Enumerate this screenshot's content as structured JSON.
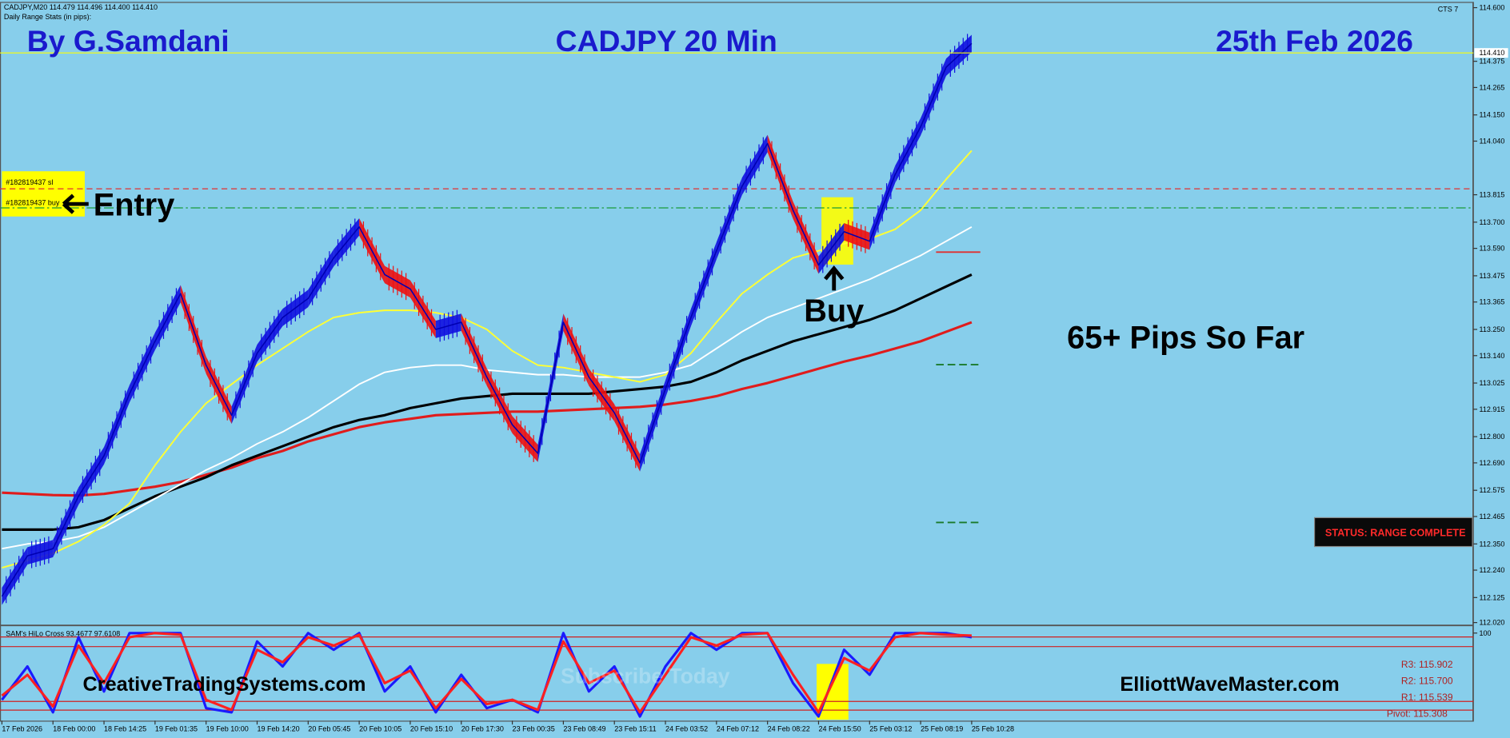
{
  "header": {
    "symbol": "CADJPY,M20 114.479 114.496 114.400 114.410",
    "stats": "Daily Range Stats (in pips):",
    "author": "By G.Samdani",
    "date": "25th Feb 2026",
    "indicator": "CTS 7"
  },
  "annotations": {
    "entry": "Entry",
    "buy": "Buy",
    "result": "65+ Pips So Far",
    "status": "STATUS: RANGE COMPLETE",
    "watermark": "Subscribe Today"
  },
  "footer": {
    "left": "CreativeTradingSystems.com",
    "right": "ElliottWaveMaster.com"
  },
  "pivots": [
    "R3: 115.902",
    "R2: 115.700",
    "R1: 115.539",
    "Pivot: 115.308"
  ],
  "chart_data": [
    {
      "type": "line",
      "title": "CADJPY 20 Min",
      "categories": [
        "17 Feb 2026",
        null,
        "18 Feb 00:00",
        null,
        "18 Feb 14:25",
        null,
        "19 Feb 01:35",
        null,
        "19 Feb 10:00",
        null,
        "19 Feb 14:20",
        null,
        "20 Feb 05:45",
        null,
        "20 Feb 10:05",
        null,
        "20 Feb 15:10",
        null,
        "20 Feb 17:30",
        null,
        "23 Feb 00:35",
        null,
        "23 Feb 08:49",
        null,
        "23 Feb 15:11",
        null,
        "24 Feb 03:52",
        null,
        "24 Feb 07:12",
        null,
        "24 Feb 08:22",
        null,
        "24 Feb 15:50",
        null,
        "25 Feb 03:12",
        null,
        "25 Feb 08:19",
        null,
        "25 Feb 10:28"
      ],
      "series": [
        {
          "color": "#e01c1c",
          "values": [
            112.565,
            112.56,
            112.555,
            112.553,
            112.56,
            112.575,
            112.59,
            112.61,
            112.64,
            112.67,
            112.71,
            112.74,
            112.78,
            112.81,
            112.84,
            112.86,
            112.875,
            112.89,
            112.895,
            112.9,
            112.905,
            112.905,
            112.91,
            112.915,
            112.92,
            112.925,
            112.935,
            112.95,
            112.97,
            113.0,
            113.025,
            113.055,
            113.085,
            113.115,
            113.14,
            113.17,
            113.2,
            113.24,
            113.28
          ]
        },
        {
          "color": "#000000",
          "values": [
            112.41,
            112.41,
            112.41,
            112.42,
            112.45,
            112.5,
            112.55,
            112.59,
            112.63,
            112.68,
            112.72,
            112.76,
            112.8,
            112.84,
            112.87,
            112.89,
            112.92,
            112.94,
            112.96,
            112.97,
            112.98,
            112.98,
            112.98,
            112.98,
            112.99,
            113.0,
            113.01,
            113.03,
            113.07,
            113.12,
            113.16,
            113.2,
            113.23,
            113.26,
            113.29,
            113.33,
            113.38,
            113.43,
            113.48
          ]
        },
        {
          "color": "#ffffff",
          "values": [
            112.33,
            112.35,
            112.36,
            112.38,
            112.42,
            112.48,
            112.54,
            112.6,
            112.66,
            112.71,
            112.77,
            112.82,
            112.88,
            112.95,
            113.02,
            113.07,
            113.09,
            113.1,
            113.1,
            113.08,
            113.07,
            113.06,
            113.06,
            113.05,
            113.05,
            113.05,
            113.07,
            113.1,
            113.17,
            113.24,
            113.3,
            113.34,
            113.38,
            113.42,
            113.46,
            113.51,
            113.56,
            113.62,
            113.68
          ]
        },
        {
          "color": "#ffff33",
          "values": [
            112.25,
            112.28,
            112.31,
            112.36,
            112.43,
            112.52,
            112.68,
            112.82,
            112.94,
            113.02,
            113.1,
            113.17,
            113.24,
            113.3,
            113.32,
            113.33,
            113.33,
            113.32,
            113.3,
            113.25,
            113.16,
            113.1,
            113.09,
            113.07,
            113.05,
            113.03,
            113.06,
            113.15,
            113.28,
            113.4,
            113.48,
            113.55,
            113.58,
            113.61,
            113.63,
            113.67,
            113.75,
            113.88,
            114.0
          ]
        },
        {
          "color": "#1010e0",
          "down_color": "#ee1111",
          "values": [
            112.13,
            112.3,
            112.33,
            112.55,
            112.72,
            112.98,
            113.2,
            113.4,
            113.1,
            112.89,
            113.15,
            113.3,
            113.38,
            113.55,
            113.68,
            113.48,
            113.42,
            113.25,
            113.28,
            113.05,
            112.85,
            112.73,
            113.28,
            113.05,
            112.9,
            112.69,
            113.0,
            113.3,
            113.58,
            113.85,
            114.03,
            113.75,
            113.52,
            113.66,
            113.62,
            113.9,
            114.1,
            114.35,
            114.45
          ]
        }
      ],
      "last": {
        "value": 114.41,
        "label": "114.410"
      },
      "levels": [
        {
          "label": "#182819437 sl",
          "value": 113.84,
          "color": "#e03030"
        },
        {
          "label": "#182819437 buy",
          "value": 113.76,
          "color": "#1a9a3a"
        }
      ],
      "ylim": [
        112.008,
        114.62
      ],
      "yticks": [
        {
          "value": 114.6,
          "label": "114.600"
        },
        114.375,
        114.265,
        {
          "value": 114.15,
          "label": "114.150"
        },
        {
          "value": 114.04,
          "label": "114.040"
        },
        113.815,
        {
          "value": 113.7,
          "label": "113.700"
        },
        {
          "value": 113.59,
          "label": "113.590"
        },
        113.475,
        113.365,
        {
          "value": 113.25,
          "label": "113.250"
        },
        {
          "value": 113.14,
          "label": "113.140"
        },
        113.025,
        112.915,
        {
          "value": 112.8,
          "label": "112.800"
        },
        {
          "value": 112.69,
          "label": "112.690"
        },
        112.575,
        112.465,
        {
          "value": 112.35,
          "label": "112.350"
        },
        {
          "value": 112.24,
          "label": "112.240"
        },
        112.125,
        {
          "value": 112.02,
          "label": "112.020"
        }
      ],
      "grid": false
    },
    {
      "type": "line",
      "title": "SAM's HiLo Cross 93.4677 97.6108",
      "series": [
        {
          "color": "#1a1aff",
          "values": [
            20,
            60,
            5,
            95,
            30,
            100,
            100,
            100,
            10,
            5,
            90,
            60,
            100,
            80,
            100,
            30,
            60,
            5,
            50,
            10,
            20,
            5,
            100,
            30,
            60,
            0,
            60,
            100,
            80,
            100,
            100,
            40,
            0,
            80,
            50,
            100,
            100,
            100,
            95
          ]
        },
        {
          "color": "#ff2020",
          "values": [
            25,
            50,
            12,
            85,
            40,
            95,
            100,
            98,
            20,
            8,
            80,
            65,
            95,
            85,
            98,
            40,
            55,
            10,
            45,
            15,
            20,
            8,
            90,
            40,
            55,
            5,
            50,
            95,
            85,
            98,
            100,
            50,
            5,
            70,
            55,
            95,
            100,
            98,
            97
          ]
        }
      ],
      "ylim": [
        -5,
        108
      ],
      "yticks": [
        100
      ],
      "grid": false
    }
  ]
}
